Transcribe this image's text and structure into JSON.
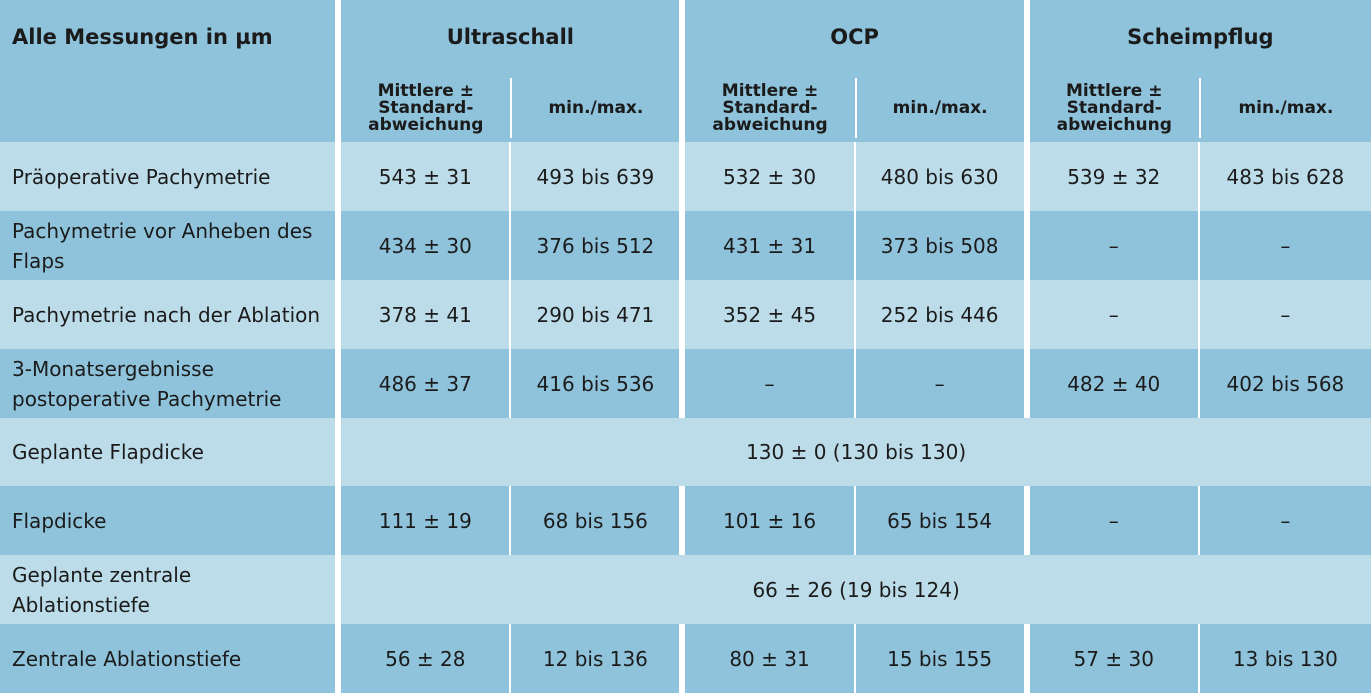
{
  "header": {
    "corner": "Alle Messungen in µm",
    "groups": [
      "Ultraschall",
      "OCP",
      "Scheimpflug"
    ],
    "mean_label": "Mittlere ± Standard-abweichung",
    "mean_lines": [
      "Mittlere ±",
      "Standard-",
      "abweichung"
    ],
    "minmax_label": "min./max."
  },
  "rows": [
    {
      "label": "Präoperative Pachymetrie",
      "cells": [
        "543 ± 31",
        "493 bis 639",
        "532 ± 30",
        "480 bis 630",
        "539 ± 32",
        "483 bis 628"
      ]
    },
    {
      "label": "Pachymetrie vor Anheben des Flaps",
      "cells": [
        "434 ± 30",
        "376 bis 512",
        "431 ± 31",
        "373 bis 508",
        "–",
        "–"
      ]
    },
    {
      "label": "Pachymetrie nach der Ablation",
      "cells": [
        "378 ± 41",
        "290 bis 471",
        "352 ± 45",
        "252 bis 446",
        "–",
        "–"
      ]
    },
    {
      "label": "3-Monatsergebnisse postoperative Pachymetrie",
      "cells": [
        "486 ± 37",
        "416 bis 536",
        "–",
        "–",
        "482 ± 40",
        "402 bis 568"
      ]
    },
    {
      "label": "Geplante Flapdicke",
      "merged": "130 ± 0 (130 bis 130)"
    },
    {
      "label": "Flapdicke",
      "cells": [
        "111 ± 19",
        "68 bis 156",
        "101 ± 16",
        "65 bis 154",
        "–",
        "–"
      ]
    },
    {
      "label": "Geplante zentrale Ablationstiefe",
      "merged": "66 ± 26 (19 bis 124)"
    },
    {
      "label": "Zentrale Ablationstiefe",
      "cells": [
        "56 ± 28",
        "12 bis 136",
        "80 ± 31",
        "15 bis 155",
        "57 ± 30",
        "13 bis 130"
      ]
    }
  ]
}
